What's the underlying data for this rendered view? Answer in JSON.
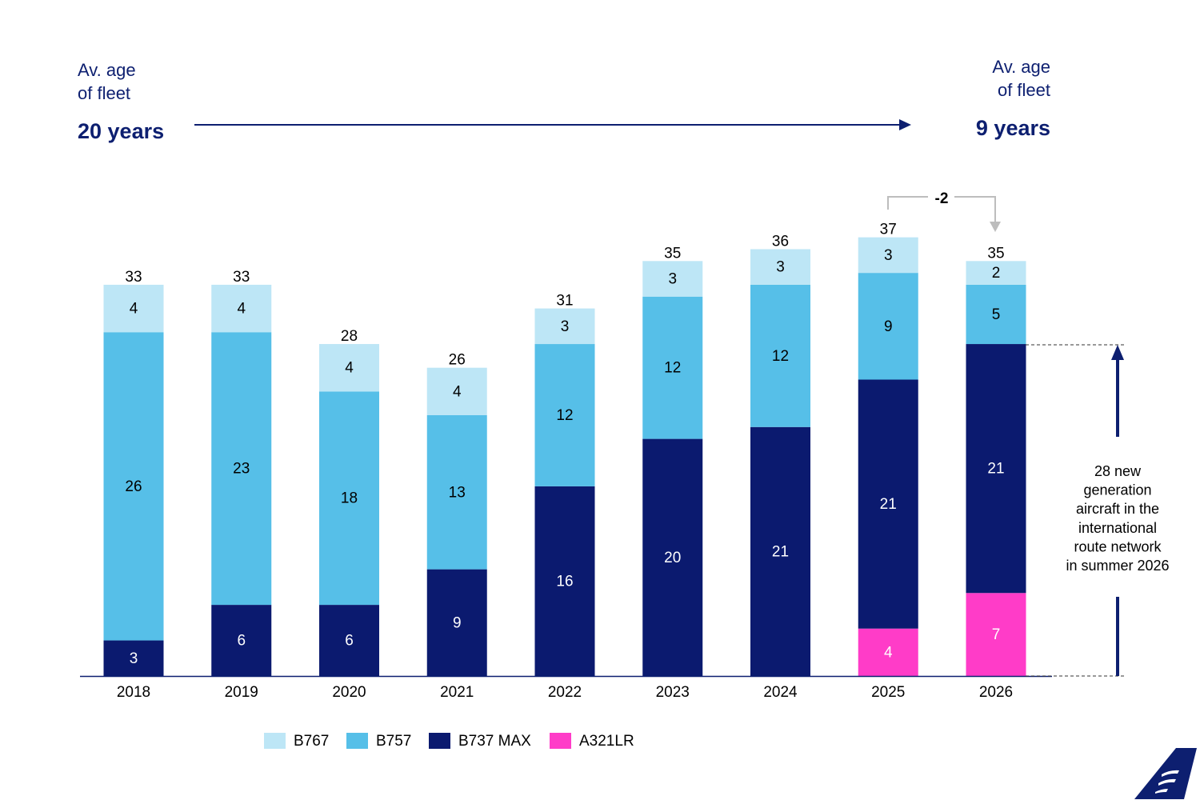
{
  "header": {
    "left": {
      "line1": "Av. age",
      "line2": "of fleet",
      "value": "20 years"
    },
    "right": {
      "line1": "Av. age",
      "line2": "of fleet",
      "value": "9 years"
    }
  },
  "chart_data": {
    "type": "bar",
    "stacked": true,
    "categories": [
      "2018",
      "2019",
      "2020",
      "2021",
      "2022",
      "2023",
      "2024",
      "2025",
      "2026"
    ],
    "series": [
      {
        "name": "A321LR",
        "color": "#ff3cc8",
        "values": [
          0,
          0,
          0,
          0,
          0,
          0,
          0,
          4,
          7
        ]
      },
      {
        "name": "B737 MAX",
        "color": "#0b1a6f",
        "values": [
          3,
          6,
          6,
          9,
          16,
          20,
          21,
          21,
          21
        ]
      },
      {
        "name": "B757",
        "color": "#56bfe8",
        "values": [
          26,
          23,
          18,
          13,
          12,
          12,
          12,
          9,
          5
        ]
      },
      {
        "name": "B767",
        "color": "#bde6f6",
        "values": [
          4,
          4,
          4,
          4,
          3,
          3,
          3,
          3,
          2
        ]
      }
    ],
    "totals": [
      33,
      33,
      28,
      26,
      31,
      35,
      36,
      37,
      35
    ],
    "legend_order": [
      "B767",
      "B757",
      "B737 MAX",
      "A321LR"
    ],
    "legend_position": "bottom",
    "grid": false,
    "ylim": [
      0,
      37
    ],
    "change_annotation": {
      "from": "2025",
      "to": "2026",
      "label": "-2"
    },
    "side_annotation": {
      "lines": [
        "28 new",
        "generation",
        "aircraft in the",
        "international",
        "route network",
        "in summer 2026"
      ]
    }
  },
  "colors": {
    "navy": "#0d1f70",
    "gray_bracket": "#bdbdbd"
  },
  "logo": {
    "icon": "tail-fin-logo-icon"
  }
}
